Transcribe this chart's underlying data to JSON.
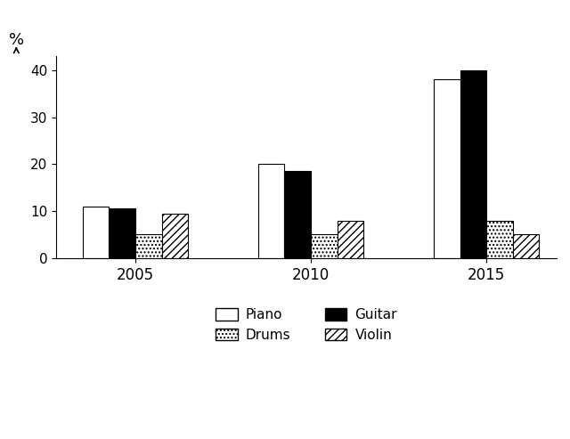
{
  "years": [
    "2005",
    "2010",
    "2015"
  ],
  "instruments": [
    "Piano",
    "Guitar",
    "Drums",
    "Violin"
  ],
  "values": {
    "Piano": [
      11,
      20,
      38
    ],
    "Guitar": [
      10.5,
      18.5,
      40
    ],
    "Drums": [
      5,
      5,
      8
    ],
    "Violin": [
      9.5,
      8,
      5
    ]
  },
  "ylim": [
    0,
    43
  ],
  "yticks": [
    0,
    10,
    20,
    30,
    40
  ],
  "bar_width": 0.15,
  "background_color": "#ffffff",
  "edge_color": "#000000",
  "group_centers": [
    0.35,
    1.35,
    2.35
  ]
}
